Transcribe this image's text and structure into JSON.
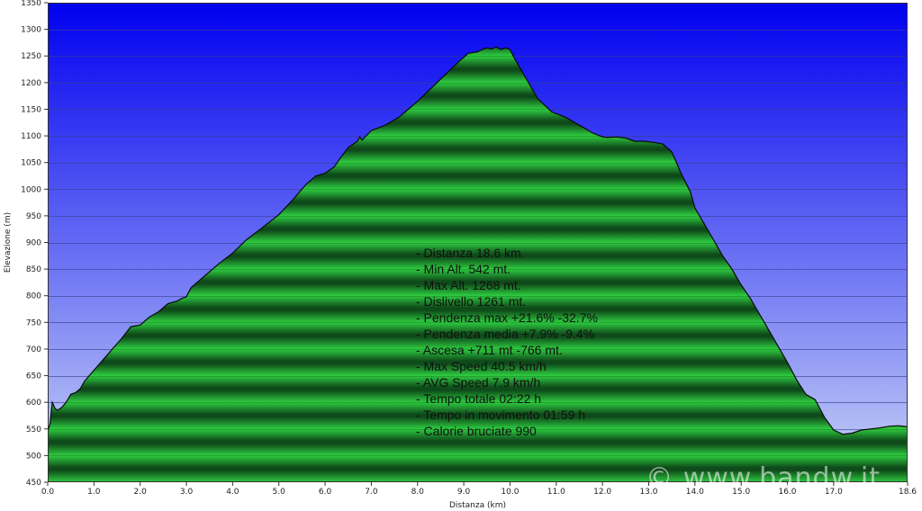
{
  "chart_data": {
    "type": "area",
    "title": "",
    "xlabel": "Distanza   (km)",
    "ylabel": "Elevazione (m)",
    "xlim": [
      0,
      18.6
    ],
    "ylim": [
      450,
      1350
    ],
    "xticks": [
      {
        "value": 0,
        "label": "0.0"
      },
      {
        "value": 1,
        "label": "1.0"
      },
      {
        "value": 2,
        "label": "2.0"
      },
      {
        "value": 3,
        "label": "3.0"
      },
      {
        "value": 4,
        "label": "4.0"
      },
      {
        "value": 5,
        "label": "5.0"
      },
      {
        "value": 6,
        "label": "6.0"
      },
      {
        "value": 7,
        "label": "7.0"
      },
      {
        "value": 8,
        "label": "8.0"
      },
      {
        "value": 9,
        "label": "9.0"
      },
      {
        "value": 10,
        "label": "10.0"
      },
      {
        "value": 11,
        "label": "11.0"
      },
      {
        "value": 12,
        "label": "12.0"
      },
      {
        "value": 13,
        "label": "13.0"
      },
      {
        "value": 14,
        "label": "14.0"
      },
      {
        "value": 15,
        "label": "15.0"
      },
      {
        "value": 16,
        "label": "16.0"
      },
      {
        "value": 17,
        "label": "17.0"
      },
      {
        "value": 18.6,
        "label": "18.6"
      }
    ],
    "yticks": [
      {
        "value": 450,
        "label": "450"
      },
      {
        "value": 500,
        "label": "500"
      },
      {
        "value": 550,
        "label": "550"
      },
      {
        "value": 600,
        "label": "600"
      },
      {
        "value": 650,
        "label": "650"
      },
      {
        "value": 700,
        "label": "700"
      },
      {
        "value": 750,
        "label": "750"
      },
      {
        "value": 800,
        "label": "800"
      },
      {
        "value": 850,
        "label": "850"
      },
      {
        "value": 900,
        "label": "900"
      },
      {
        "value": 950,
        "label": "950"
      },
      {
        "value": 1000,
        "label": "1000"
      },
      {
        "value": 1050,
        "label": "1050"
      },
      {
        "value": 1100,
        "label": "1100"
      },
      {
        "value": 1150,
        "label": "1150"
      },
      {
        "value": 1200,
        "label": "1200"
      },
      {
        "value": 1250,
        "label": "1250"
      },
      {
        "value": 1300,
        "label": "1300"
      },
      {
        "value": 1350,
        "label": "1350"
      }
    ],
    "grid": true,
    "series": [
      {
        "x": [
          0,
          0.05,
          0.1,
          0.15,
          0.2,
          0.3,
          0.4,
          0.5,
          0.6,
          0.7,
          0.8,
          1.0,
          1.2,
          1.4,
          1.6,
          1.8,
          2.0,
          2.2,
          2.4,
          2.6,
          2.8,
          2.9,
          3.0,
          3.1,
          3.3,
          3.5,
          3.7,
          4.0,
          4.3,
          4.6,
          5.0,
          5.3,
          5.6,
          5.8,
          6.0,
          6.2,
          6.3,
          6.5,
          6.7,
          6.75,
          6.8,
          7.0,
          7.3,
          7.6,
          8.0,
          8.3,
          8.6,
          8.9,
          9.1,
          9.3,
          9.4,
          9.5,
          9.6,
          9.7,
          9.8,
          9.9,
          10.0,
          10.1,
          10.2,
          10.4,
          10.6,
          10.9,
          11.2,
          11.5,
          11.8,
          12.0,
          12.1,
          12.3,
          12.5,
          12.7,
          12.9,
          13.1,
          13.3,
          13.5,
          13.7,
          13.9,
          14.0,
          14.2,
          14.4,
          14.6,
          14.8,
          15.0,
          15.2,
          15.4,
          15.6,
          15.8,
          16.0,
          16.2,
          16.4,
          16.6,
          16.8,
          17.0,
          17.2,
          17.4,
          17.6,
          17.8,
          18.0,
          18.2,
          18.4,
          18.6
        ],
        "y": [
          545,
          560,
          600,
          590,
          585,
          590,
          600,
          615,
          618,
          625,
          640,
          660,
          680,
          700,
          720,
          742,
          745,
          760,
          770,
          785,
          790,
          795,
          798,
          815,
          830,
          845,
          860,
          880,
          905,
          925,
          952,
          980,
          1010,
          1025,
          1030,
          1042,
          1055,
          1078,
          1090,
          1098,
          1092,
          1110,
          1120,
          1135,
          1165,
          1190,
          1215,
          1240,
          1255,
          1258,
          1262,
          1265,
          1263,
          1267,
          1262,
          1265,
          1262,
          1245,
          1230,
          1200,
          1170,
          1145,
          1135,
          1120,
          1105,
          1098,
          1097,
          1098,
          1096,
          1090,
          1090,
          1088,
          1085,
          1070,
          1030,
          995,
          965,
          935,
          905,
          875,
          850,
          820,
          795,
          765,
          735,
          705,
          675,
          642,
          615,
          605,
          572,
          548,
          540,
          542,
          548,
          550,
          552,
          555,
          556,
          554
        ]
      }
    ],
    "annotations": [
      "- Distanza 18.6 km.",
      "- Min Alt. 542 mt.",
      "- Max Alt. 1268 mt.",
      "- Dislivello 1261 mt.",
      "- Pendenza max +21.6% -32.7%",
      "- Pendenza media +7.9% -9.4%",
      "- Ascesa +711 mt -766 mt.",
      "- Max Speed 40.5 km/h",
      "- AVG Speed 7.9 km/h",
      "- Tempo totale 02:22 h",
      "- Tempo in movimento 01:59 h",
      "- Calorie bruciate 990"
    ],
    "watermark": "© www.bandw.it",
    "colors": {
      "sky_top": "#0000f0",
      "sky_bottom": "#c8d4f6",
      "fill_light": "#2ecc40",
      "fill_dark": "#0f4a1a",
      "outline": "#0a0a0a"
    }
  }
}
